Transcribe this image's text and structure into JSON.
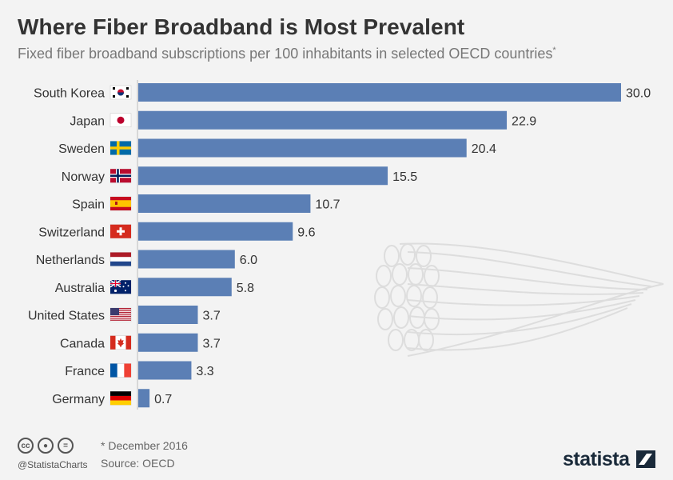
{
  "header": {
    "title": "Where Fiber Broadband is Most Prevalent",
    "subtitle": "Fixed fiber broadband subscriptions per 100 inhabitants in selected OECD countries",
    "subtitle_marker": "*"
  },
  "chart_data": {
    "type": "bar",
    "orientation": "horizontal",
    "title": "Where Fiber Broadband is Most Prevalent",
    "subtitle": "Fixed fiber broadband subscriptions per 100 inhabitants in selected OECD countries*",
    "categories": [
      "South Korea",
      "Japan",
      "Sweden",
      "Norway",
      "Spain",
      "Switzerland",
      "Netherlands",
      "Australia",
      "United States",
      "Canada",
      "France",
      "Germany"
    ],
    "flags": [
      "south-korea-flag",
      "japan-flag",
      "sweden-flag",
      "norway-flag",
      "spain-flag",
      "switzerland-flag",
      "netherlands-flag",
      "australia-flag",
      "united-states-flag",
      "canada-flag",
      "france-flag",
      "germany-flag"
    ],
    "values": [
      30.0,
      22.9,
      20.4,
      15.5,
      10.7,
      9.6,
      6.0,
      5.8,
      3.7,
      3.7,
      3.3,
      0.7
    ],
    "value_labels": [
      "30.0",
      "22.9",
      "20.4",
      "15.5",
      "10.7",
      "9.6",
      "6.0",
      "5.8",
      "3.7",
      "3.7",
      "3.3",
      "0.7"
    ],
    "xlim": [
      0,
      30
    ],
    "bar_color": "#5b7fb5",
    "grid": false
  },
  "footer": {
    "note": "* December 2016",
    "source": "Source: OECD",
    "handle": "@StatistaCharts",
    "brand": "statista",
    "license_icons": [
      "cc",
      "by",
      "="
    ]
  }
}
